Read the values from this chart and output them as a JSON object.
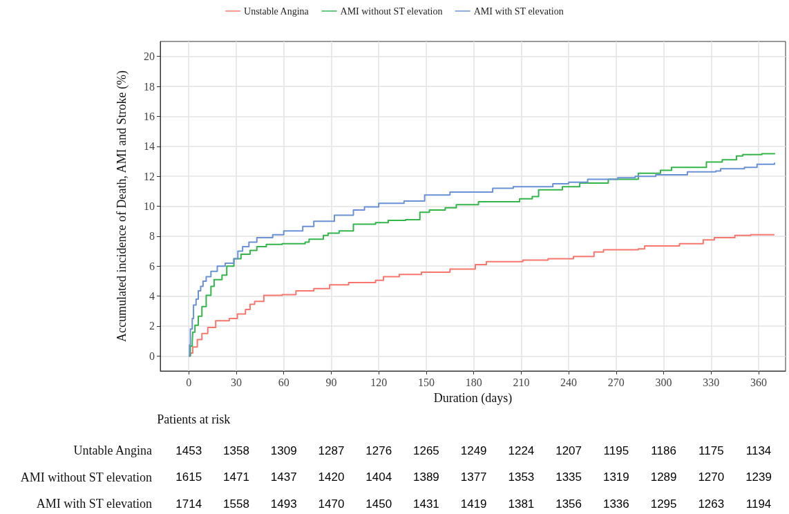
{
  "chart_data": {
    "type": "step",
    "xlabel": "Duration (days)",
    "ylabel": "Accumulated incidence of Death, AMI and Stroke (%)",
    "series": [
      {
        "name": "Unstable Angina",
        "color": "#f8766d",
        "x": [
          0,
          1,
          2.5,
          5.4,
          8.3,
          12,
          17,
          25.6,
          30.7,
          35.8,
          38.7,
          41.6,
          47.4,
          59,
          67.7,
          79,
          89,
          101,
          118,
          123,
          133,
          147,
          165,
          181,
          188,
          211,
          227,
          243,
          256,
          262,
          284,
          288,
          310,
          325,
          332,
          345,
          355,
          370
        ],
        "values": [
          0,
          0.2,
          0.6,
          1.1,
          1.5,
          1.9,
          2.35,
          2.5,
          2.8,
          3.1,
          3.45,
          3.65,
          4.05,
          4.1,
          4.35,
          4.5,
          4.75,
          4.9,
          5.05,
          5.3,
          5.45,
          5.6,
          5.8,
          6.1,
          6.3,
          6.4,
          6.5,
          6.65,
          6.95,
          7.1,
          7.15,
          7.35,
          7.5,
          7.75,
          7.9,
          8.05,
          8.1,
          8.1
        ]
      },
      {
        "name": "AMI without ST elevation",
        "color": "#33b549",
        "x": [
          0,
          1,
          2.2,
          2.5,
          3.9,
          6,
          8.3,
          11,
          14,
          16,
          21,
          24,
          28.5,
          33,
          38.7,
          43,
          49,
          59,
          73.5,
          76,
          85,
          88,
          95,
          104,
          118,
          126,
          137,
          146,
          152,
          162,
          169,
          183,
          209,
          217,
          221,
          236,
          247,
          265,
          284,
          298,
          305,
          327,
          337,
          346,
          350,
          362,
          370
        ],
        "values": [
          0,
          0.66,
          0.97,
          1.6,
          2.05,
          2.65,
          3.3,
          4.05,
          4.65,
          5.1,
          5.4,
          6.0,
          6.5,
          6.8,
          7.05,
          7.3,
          7.45,
          7.5,
          7.6,
          7.8,
          8.05,
          8.2,
          8.35,
          8.8,
          8.9,
          9.05,
          9.1,
          9.6,
          9.75,
          9.9,
          10.1,
          10.3,
          10.5,
          10.65,
          11.1,
          11.3,
          11.55,
          11.8,
          12.2,
          12.4,
          12.6,
          12.95,
          13.1,
          13.35,
          13.45,
          13.5,
          13.55
        ]
      },
      {
        "name": "AMI with ST elevation",
        "color": "#6a91d6",
        "x": [
          0,
          0.5,
          1,
          2.2,
          3,
          4.6,
          6,
          7.5,
          9,
          11,
          14,
          18,
          23,
          28.5,
          31,
          34,
          38,
          43,
          53,
          60,
          72,
          79,
          92,
          104,
          111,
          120,
          136,
          149,
          165,
          192,
          205,
          230,
          240,
          252,
          271,
          282,
          295,
          315,
          333,
          336,
          351,
          359,
          370
        ],
        "values": [
          0,
          0.74,
          1.8,
          2.5,
          3.4,
          3.8,
          4.35,
          4.65,
          5.0,
          5.3,
          5.65,
          6.0,
          6.2,
          6.5,
          7.0,
          7.3,
          7.6,
          7.9,
          8.1,
          8.35,
          8.65,
          9.0,
          9.4,
          9.75,
          9.95,
          10.2,
          10.35,
          10.75,
          10.95,
          11.2,
          11.3,
          11.5,
          11.6,
          11.8,
          11.9,
          12.0,
          12.1,
          12.3,
          12.35,
          12.5,
          12.6,
          12.8,
          12.9
        ]
      }
    ],
    "xlim": [
      -18,
      377
    ],
    "xticks": [
      0,
      30,
      60,
      90,
      120,
      150,
      180,
      210,
      240,
      270,
      300,
      330,
      360
    ],
    "ylim": [
      -1,
      21
    ],
    "yticks": [
      0,
      2,
      4,
      6,
      8,
      10,
      12,
      14,
      16,
      18,
      20
    ],
    "grid": true,
    "legend": "top",
    "line_style": "solid",
    "marker": "none",
    "annotations": [
      "Patients at risk",
      "Untable Angina",
      "1453",
      "1358",
      "1309",
      "1287",
      "1276",
      "1265",
      "1249",
      "1224",
      "1207",
      "1195",
      "1186",
      "1175",
      "1134",
      "AMI without ST elevation",
      "1615",
      "1471",
      "1437",
      "1420",
      "1404",
      "1389",
      "1377",
      "1353",
      "1335",
      "1319",
      "1289",
      "1270",
      "1239",
      "AMI with ST elevation",
      "1714",
      "1558",
      "1493",
      "1470",
      "1450",
      "1431",
      "1419",
      "1381",
      "1356",
      "1336",
      "1295",
      "1263",
      "1194"
    ]
  }
}
